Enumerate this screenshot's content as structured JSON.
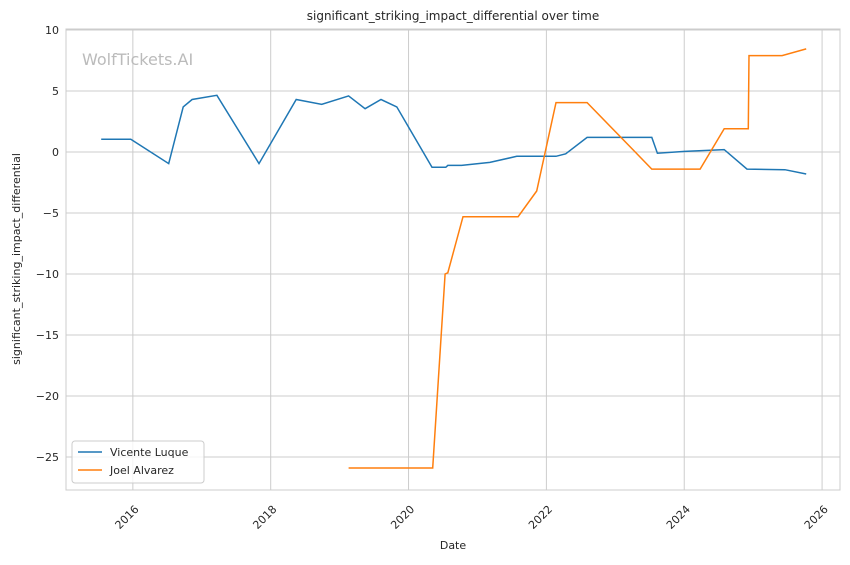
{
  "chart_data": {
    "type": "line",
    "title": "significant_striking_impact_differential over time",
    "xlabel": "Date",
    "ylabel": "significant_striking_impact_differential",
    "watermark": "WolfTickets.AI",
    "xlim": [
      2015.03,
      2026.26
    ],
    "ylim": [
      -27.7,
      10.08
    ],
    "xticks": [
      2016,
      2018,
      2020,
      2022,
      2024,
      2026
    ],
    "xtick_labels": [
      "2016",
      "2018",
      "2020",
      "2022",
      "2024",
      "2026"
    ],
    "yticks": [
      10,
      5,
      0,
      -5,
      -10,
      -15,
      -20,
      -25
    ],
    "ytick_labels": [
      "10",
      "5",
      "0",
      "−5",
      "−10",
      "−15",
      "−20",
      "−25"
    ],
    "grid": true,
    "legend_position": "lower-left",
    "series": [
      {
        "name": "Vicente Luque",
        "color": "#1f77b4",
        "x": [
          2015.54,
          2015.97,
          2016.52,
          2016.73,
          2016.86,
          2017.22,
          2017.83,
          2018.37,
          2018.74,
          2019.13,
          2019.37,
          2019.6,
          2019.83,
          2020.34,
          2020.54,
          2020.57,
          2020.77,
          2021.18,
          2021.57,
          2022.14,
          2022.28,
          2022.59,
          2023.53,
          2023.61,
          2024.01,
          2024.58,
          2024.91,
          2025.46,
          2025.77
        ],
        "y": [
          1.05,
          1.05,
          -0.95,
          3.7,
          4.3,
          4.65,
          -0.95,
          4.3,
          3.9,
          4.6,
          3.55,
          4.3,
          3.7,
          -1.25,
          -1.25,
          -1.1,
          -1.1,
          -0.85,
          -0.35,
          -0.35,
          -0.15,
          1.2,
          1.2,
          -0.1,
          0.05,
          0.2,
          -1.4,
          -1.45,
          -1.8
        ]
      },
      {
        "name": "Joel Alvarez",
        "color": "#ff7f0e",
        "x": [
          2019.13,
          2020.35,
          2020.53,
          2020.57,
          2020.79,
          2021.59,
          2021.86,
          2022.14,
          2022.59,
          2023.53,
          2024.23,
          2024.58,
          2024.93,
          2024.94,
          2025.42,
          2025.77
        ],
        "y": [
          -25.9,
          -25.9,
          -10,
          -9.9,
          -5.3,
          -5.3,
          -3.2,
          4.05,
          4.05,
          -1.4,
          -1.4,
          1.9,
          1.9,
          7.9,
          7.9,
          8.45
        ]
      }
    ]
  }
}
